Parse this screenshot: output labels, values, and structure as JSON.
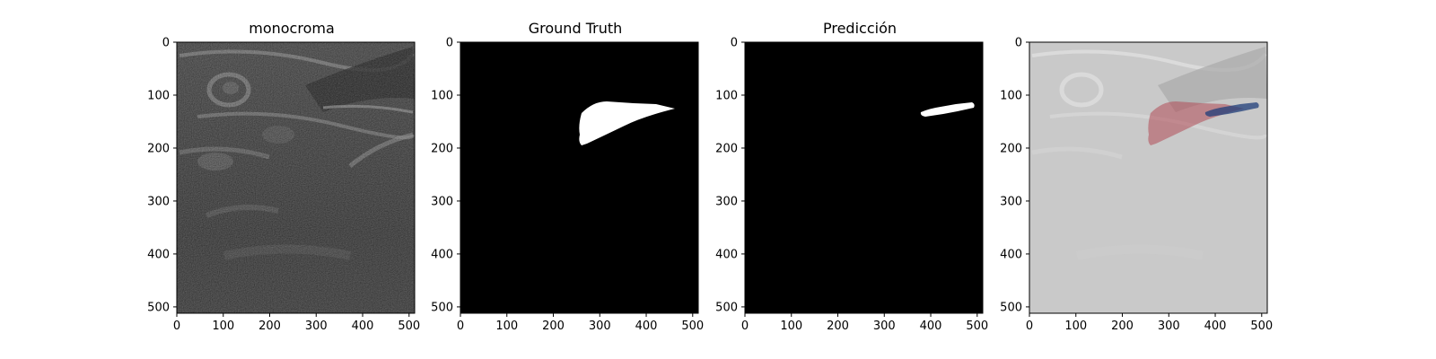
{
  "panels": [
    {
      "id": "p1",
      "title": "monocroma",
      "kind": "ultrasound"
    },
    {
      "id": "p2",
      "title": "Ground Truth",
      "kind": "mask_gt"
    },
    {
      "id": "p3",
      "title": "Predicción",
      "kind": "mask_pred"
    },
    {
      "id": "p4",
      "title": "",
      "kind": "overlay"
    }
  ],
  "axes": {
    "x_ticks": [
      "0",
      "100",
      "200",
      "300",
      "400",
      "500"
    ],
    "y_ticks": [
      "0",
      "100",
      "200",
      "300",
      "400",
      "500"
    ]
  },
  "colors": {
    "mask_fg": "#ffffff",
    "mask_bg": "#000000",
    "overlay_gt": "#b04a55",
    "overlay_pred": "#1f3d7a"
  }
}
